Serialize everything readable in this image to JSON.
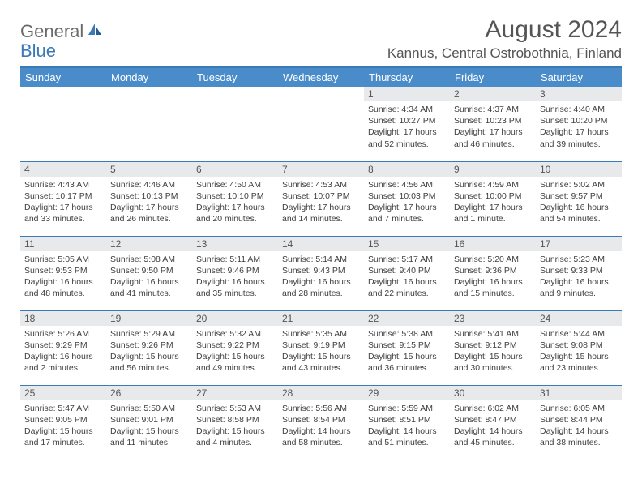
{
  "logo": {
    "part1": "General",
    "part2": "Blue"
  },
  "title": "August 2024",
  "location": "Kannus, Central Ostrobothnia, Finland",
  "colors": {
    "header_bg": "#4a8cc9",
    "header_border": "#3a7ab8",
    "daynum_bg": "#e7e9eb",
    "logo_gray": "#6a6a6a",
    "logo_blue": "#3a7ab8",
    "text": "#404040"
  },
  "fonts": {
    "title_size": 30,
    "location_size": 17,
    "weekday_size": 13,
    "daynum_size": 12,
    "body_size": 10.5
  },
  "weekdays": [
    "Sunday",
    "Monday",
    "Tuesday",
    "Wednesday",
    "Thursday",
    "Friday",
    "Saturday"
  ],
  "weeks": [
    [
      null,
      null,
      null,
      null,
      {
        "n": "1",
        "sr": "4:34 AM",
        "ss": "10:27 PM",
        "dl": "17 hours and 52 minutes."
      },
      {
        "n": "2",
        "sr": "4:37 AM",
        "ss": "10:23 PM",
        "dl": "17 hours and 46 minutes."
      },
      {
        "n": "3",
        "sr": "4:40 AM",
        "ss": "10:20 PM",
        "dl": "17 hours and 39 minutes."
      }
    ],
    [
      {
        "n": "4",
        "sr": "4:43 AM",
        "ss": "10:17 PM",
        "dl": "17 hours and 33 minutes."
      },
      {
        "n": "5",
        "sr": "4:46 AM",
        "ss": "10:13 PM",
        "dl": "17 hours and 26 minutes."
      },
      {
        "n": "6",
        "sr": "4:50 AM",
        "ss": "10:10 PM",
        "dl": "17 hours and 20 minutes."
      },
      {
        "n": "7",
        "sr": "4:53 AM",
        "ss": "10:07 PM",
        "dl": "17 hours and 14 minutes."
      },
      {
        "n": "8",
        "sr": "4:56 AM",
        "ss": "10:03 PM",
        "dl": "17 hours and 7 minutes."
      },
      {
        "n": "9",
        "sr": "4:59 AM",
        "ss": "10:00 PM",
        "dl": "17 hours and 1 minute."
      },
      {
        "n": "10",
        "sr": "5:02 AM",
        "ss": "9:57 PM",
        "dl": "16 hours and 54 minutes."
      }
    ],
    [
      {
        "n": "11",
        "sr": "5:05 AM",
        "ss": "9:53 PM",
        "dl": "16 hours and 48 minutes."
      },
      {
        "n": "12",
        "sr": "5:08 AM",
        "ss": "9:50 PM",
        "dl": "16 hours and 41 minutes."
      },
      {
        "n": "13",
        "sr": "5:11 AM",
        "ss": "9:46 PM",
        "dl": "16 hours and 35 minutes."
      },
      {
        "n": "14",
        "sr": "5:14 AM",
        "ss": "9:43 PM",
        "dl": "16 hours and 28 minutes."
      },
      {
        "n": "15",
        "sr": "5:17 AM",
        "ss": "9:40 PM",
        "dl": "16 hours and 22 minutes."
      },
      {
        "n": "16",
        "sr": "5:20 AM",
        "ss": "9:36 PM",
        "dl": "16 hours and 15 minutes."
      },
      {
        "n": "17",
        "sr": "5:23 AM",
        "ss": "9:33 PM",
        "dl": "16 hours and 9 minutes."
      }
    ],
    [
      {
        "n": "18",
        "sr": "5:26 AM",
        "ss": "9:29 PM",
        "dl": "16 hours and 2 minutes."
      },
      {
        "n": "19",
        "sr": "5:29 AM",
        "ss": "9:26 PM",
        "dl": "15 hours and 56 minutes."
      },
      {
        "n": "20",
        "sr": "5:32 AM",
        "ss": "9:22 PM",
        "dl": "15 hours and 49 minutes."
      },
      {
        "n": "21",
        "sr": "5:35 AM",
        "ss": "9:19 PM",
        "dl": "15 hours and 43 minutes."
      },
      {
        "n": "22",
        "sr": "5:38 AM",
        "ss": "9:15 PM",
        "dl": "15 hours and 36 minutes."
      },
      {
        "n": "23",
        "sr": "5:41 AM",
        "ss": "9:12 PM",
        "dl": "15 hours and 30 minutes."
      },
      {
        "n": "24",
        "sr": "5:44 AM",
        "ss": "9:08 PM",
        "dl": "15 hours and 23 minutes."
      }
    ],
    [
      {
        "n": "25",
        "sr": "5:47 AM",
        "ss": "9:05 PM",
        "dl": "15 hours and 17 minutes."
      },
      {
        "n": "26",
        "sr": "5:50 AM",
        "ss": "9:01 PM",
        "dl": "15 hours and 11 minutes."
      },
      {
        "n": "27",
        "sr": "5:53 AM",
        "ss": "8:58 PM",
        "dl": "15 hours and 4 minutes."
      },
      {
        "n": "28",
        "sr": "5:56 AM",
        "ss": "8:54 PM",
        "dl": "14 hours and 58 minutes."
      },
      {
        "n": "29",
        "sr": "5:59 AM",
        "ss": "8:51 PM",
        "dl": "14 hours and 51 minutes."
      },
      {
        "n": "30",
        "sr": "6:02 AM",
        "ss": "8:47 PM",
        "dl": "14 hours and 45 minutes."
      },
      {
        "n": "31",
        "sr": "6:05 AM",
        "ss": "8:44 PM",
        "dl": "14 hours and 38 minutes."
      }
    ]
  ],
  "labels": {
    "sunrise": "Sunrise: ",
    "sunset": "Sunset: ",
    "daylight": "Daylight: "
  }
}
